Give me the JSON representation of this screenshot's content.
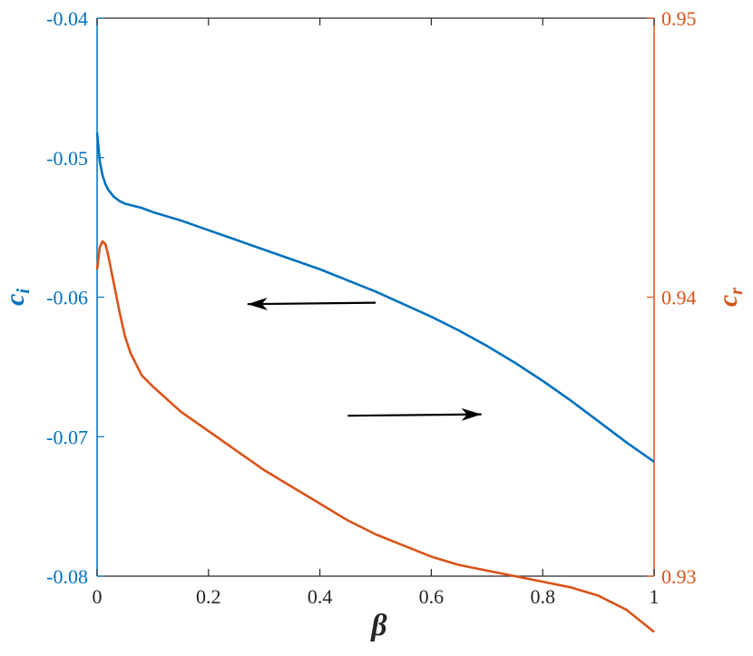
{
  "chart_data": {
    "type": "line",
    "xlabel": "β",
    "ylabel_left": "c_i",
    "ylabel_right": "c_r",
    "xlim": [
      0,
      1
    ],
    "ylim_left": [
      -0.08,
      -0.04
    ],
    "ylim_right": [
      0.93,
      0.95
    ],
    "x_ticks": [
      "0",
      "0.2",
      "0.4",
      "0.6",
      "0.8",
      "1"
    ],
    "y_left_ticks": [
      "-0.04",
      "-0.05",
      "-0.06",
      "-0.07",
      "-0.08"
    ],
    "y_right_ticks": [
      "0.95",
      "0.94",
      "0.93"
    ],
    "grid": false,
    "colors": {
      "left_axis": "#0072BD",
      "right_axis": "#D95319",
      "arrow": "#000000"
    },
    "series": [
      {
        "axis": "left",
        "x": [
          0,
          0.005,
          0.01,
          0.015,
          0.02,
          0.03,
          0.04,
          0.05,
          0.06,
          0.08,
          0.1,
          0.15,
          0.2,
          0.25,
          0.3,
          0.35,
          0.4,
          0.45,
          0.5,
          0.55,
          0.6,
          0.65,
          0.7,
          0.75,
          0.8,
          0.85,
          0.9,
          0.95,
          1.0
        ],
        "values": [
          -0.0482,
          -0.0503,
          -0.0513,
          -0.0519,
          -0.0523,
          -0.0528,
          -0.0531,
          -0.0533,
          -0.0534,
          -0.0536,
          -0.0539,
          -0.0545,
          -0.0552,
          -0.0559,
          -0.0566,
          -0.0573,
          -0.058,
          -0.0588,
          -0.0596,
          -0.0605,
          -0.0614,
          -0.0624,
          -0.0635,
          -0.0647,
          -0.066,
          -0.0674,
          -0.0689,
          -0.0704,
          -0.0718
        ]
      },
      {
        "axis": "right",
        "x": [
          0,
          0.005,
          0.01,
          0.015,
          0.02,
          0.03,
          0.04,
          0.05,
          0.06,
          0.08,
          0.1,
          0.15,
          0.2,
          0.25,
          0.3,
          0.35,
          0.4,
          0.45,
          0.5,
          0.55,
          0.6,
          0.65,
          0.7,
          0.75,
          0.8,
          0.85,
          0.9,
          0.95,
          1.0
        ],
        "values": [
          0.941,
          0.9418,
          0.942,
          0.9419,
          0.9415,
          0.9405,
          0.9395,
          0.9386,
          0.938,
          0.9372,
          0.9368,
          0.9359,
          0.9352,
          0.9345,
          0.9338,
          0.9332,
          0.9326,
          0.932,
          0.9315,
          0.9311,
          0.9307,
          0.9304,
          0.9302,
          0.93,
          0.9298,
          0.9296,
          0.9293,
          0.9288,
          0.928
        ]
      }
    ],
    "annotations": [
      {
        "type": "arrow",
        "from": [
          0.5,
          -0.0604
        ],
        "to": [
          0.27,
          -0.0605
        ],
        "axis": "left",
        "meaning": "points to left axis"
      },
      {
        "type": "arrow",
        "from": [
          0.45,
          -0.0685
        ],
        "to": [
          0.69,
          -0.0684
        ],
        "axis": "left",
        "meaning": "points to right axis"
      }
    ]
  }
}
